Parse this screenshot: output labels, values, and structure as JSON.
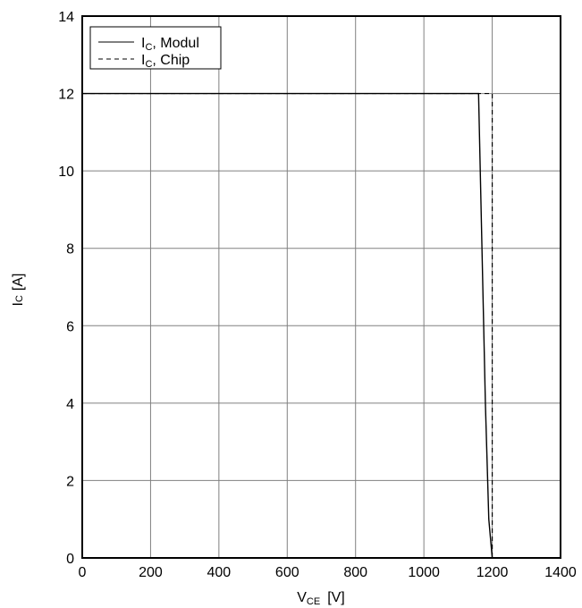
{
  "chart_data": {
    "type": "line",
    "title": "",
    "xlabel": {
      "main": "V",
      "sub": "CE",
      "unit": "[V]"
    },
    "ylabel": {
      "main": "I",
      "sub": "C",
      "unit": "[A]"
    },
    "xlim": [
      0,
      1400
    ],
    "ylim": [
      0,
      14
    ],
    "xticks": [
      0,
      200,
      400,
      600,
      800,
      1000,
      1200,
      1400
    ],
    "yticks": [
      0,
      2,
      4,
      6,
      8,
      10,
      12,
      14
    ],
    "grid": true,
    "legend": "top-left",
    "series": [
      {
        "name": "I",
        "name_sub": "C",
        "name_rest": ", Modul",
        "style": "solid",
        "color": "#000000",
        "x": [
          0,
          1160,
          1170,
          1180,
          1190,
          1195,
          1200
        ],
        "y": [
          12,
          12,
          8,
          4,
          1,
          0.5,
          0
        ]
      },
      {
        "name": "I",
        "name_sub": "C",
        "name_rest": ", Chip",
        "style": "dashed",
        "color": "#000000",
        "x": [
          0,
          1200,
          1200
        ],
        "y": [
          12,
          12,
          0
        ]
      }
    ]
  }
}
